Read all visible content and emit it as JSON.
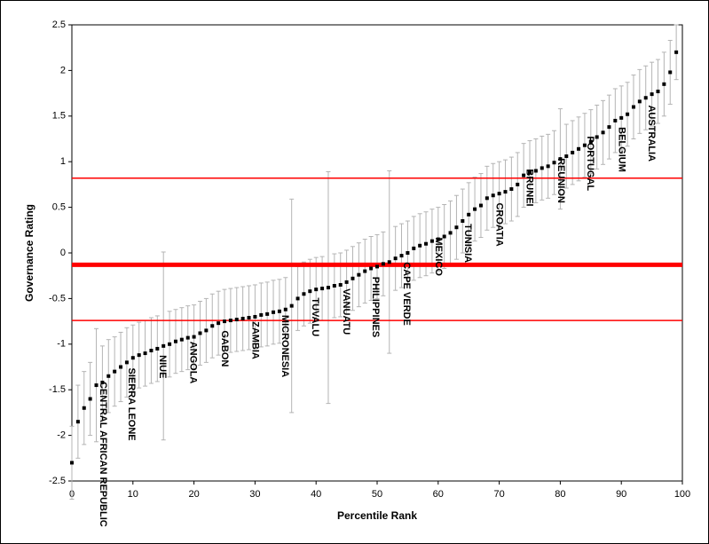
{
  "chart_data": {
    "type": "scatter",
    "x_label": "Percentile Rank",
    "y_label": "Governance Rating",
    "xlim": [
      0,
      100
    ],
    "xticks": [
      0,
      10,
      20,
      30,
      40,
      50,
      60,
      70,
      80,
      90,
      100
    ],
    "ylim": [
      -2.5,
      2.5
    ],
    "yticks": [
      -2.5,
      -2,
      -1.5,
      -1,
      -0.5,
      0,
      0.5,
      1,
      1.5,
      2,
      2.5
    ],
    "color": "#000000",
    "error_color": "#b4b4b4",
    "reference_color": "#ff0000",
    "reference_lines": [
      0.82,
      -0.13,
      -0.74
    ],
    "x": [
      0,
      1,
      2,
      3,
      4,
      5,
      6,
      7,
      8,
      9,
      10,
      11,
      12,
      13,
      14,
      15,
      16,
      17,
      18,
      19,
      20,
      21,
      22,
      23,
      24,
      25,
      26,
      27,
      28,
      29,
      30,
      31,
      32,
      33,
      34,
      35,
      36,
      37,
      38,
      39,
      40,
      41,
      42,
      43,
      44,
      45,
      46,
      47,
      48,
      49,
      50,
      51,
      52,
      53,
      54,
      55,
      56,
      57,
      58,
      59,
      60,
      61,
      62,
      63,
      64,
      65,
      66,
      67,
      68,
      69,
      70,
      71,
      72,
      73,
      74,
      75,
      76,
      77,
      78,
      79,
      80,
      81,
      82,
      83,
      84,
      85,
      86,
      87,
      88,
      89,
      90,
      91,
      92,
      93,
      94,
      95,
      96,
      97,
      98,
      99
    ],
    "values": [
      -2.3,
      -1.85,
      -1.7,
      -1.6,
      -1.45,
      -1.42,
      -1.35,
      -1.3,
      -1.25,
      -1.2,
      -1.15,
      -1.12,
      -1.1,
      -1.07,
      -1.05,
      -1.02,
      -1.0,
      -0.97,
      -0.95,
      -0.93,
      -0.92,
      -0.88,
      -0.85,
      -0.8,
      -0.77,
      -0.75,
      -0.74,
      -0.73,
      -0.72,
      -0.71,
      -0.7,
      -0.68,
      -0.67,
      -0.65,
      -0.64,
      -0.62,
      -0.58,
      -0.5,
      -0.45,
      -0.42,
      -0.4,
      -0.39,
      -0.38,
      -0.36,
      -0.35,
      -0.32,
      -0.28,
      -0.24,
      -0.2,
      -0.17,
      -0.15,
      -0.12,
      -0.1,
      -0.06,
      -0.03,
      0.0,
      0.05,
      0.08,
      0.1,
      0.13,
      0.15,
      0.18,
      0.22,
      0.28,
      0.35,
      0.42,
      0.48,
      0.52,
      0.6,
      0.63,
      0.65,
      0.67,
      0.7,
      0.75,
      0.85,
      0.88,
      0.9,
      0.93,
      0.95,
      0.99,
      1.03,
      1.06,
      1.1,
      1.14,
      1.18,
      1.22,
      1.27,
      1.32,
      1.38,
      1.45,
      1.48,
      1.52,
      1.6,
      1.66,
      1.7,
      1.74,
      1.77,
      1.85,
      1.98,
      2.2
    ],
    "errors": [
      0.4,
      0.4,
      0.4,
      0.4,
      0.62,
      0.4,
      0.4,
      0.38,
      0.38,
      0.38,
      0.36,
      0.36,
      0.36,
      0.36,
      0.36,
      1.03,
      0.36,
      0.35,
      0.35,
      0.35,
      0.35,
      0.35,
      0.35,
      0.35,
      0.35,
      0.35,
      0.35,
      0.35,
      0.35,
      0.35,
      0.35,
      0.35,
      0.35,
      0.35,
      0.35,
      0.35,
      1.17,
      0.35,
      0.35,
      0.35,
      0.35,
      0.35,
      1.27,
      0.35,
      0.35,
      0.35,
      0.35,
      0.35,
      0.35,
      0.35,
      0.35,
      0.35,
      1.0,
      0.35,
      0.35,
      0.35,
      0.35,
      0.35,
      0.35,
      0.35,
      0.35,
      0.35,
      0.35,
      0.35,
      0.35,
      0.35,
      0.35,
      0.35,
      0.35,
      0.35,
      0.35,
      0.35,
      0.35,
      0.35,
      0.35,
      0.35,
      0.35,
      0.35,
      0.35,
      0.35,
      0.55,
      0.35,
      0.35,
      0.35,
      0.35,
      0.35,
      0.35,
      0.35,
      0.35,
      0.35,
      0.35,
      0.35,
      0.35,
      0.35,
      0.35,
      0.35,
      0.35,
      0.35,
      0.35,
      0.3
    ],
    "annotations": [
      {
        "text": "CENTRAL AFRICAN REPUBLIC",
        "x": 5.1,
        "y": -1.41
      },
      {
        "text": "SIERRA LEONE",
        "x": 9.7,
        "y": -1.26
      },
      {
        "text": "NIUE",
        "x": 14.8,
        "y": -1.12
      },
      {
        "text": "ANGOLA",
        "x": 19.8,
        "y": -0.97
      },
      {
        "text": "GABON",
        "x": 25,
        "y": -0.85
      },
      {
        "text": "ZAMBIA",
        "x": 30,
        "y": -0.75
      },
      {
        "text": "MICRONESIA",
        "x": 34.9,
        "y": -0.68
      },
      {
        "text": "TUVALU",
        "x": 39.8,
        "y": -0.49
      },
      {
        "text": "VANUATU",
        "x": 44.9,
        "y": -0.39
      },
      {
        "text": "PHILIPPINES",
        "x": 49.7,
        "y": -0.26
      },
      {
        "text": "CAPE VERDE",
        "x": 54.8,
        "y": -0.1
      },
      {
        "text": "MEXICO",
        "x": 60,
        "y": 0.17
      },
      {
        "text": "TUNISIA",
        "x": 64.8,
        "y": 0.32
      },
      {
        "text": "CROATIA",
        "x": 70,
        "y": 0.55
      },
      {
        "text": "BRUNEI",
        "x": 74.9,
        "y": 0.92
      },
      {
        "text": "REUNION",
        "x": 80.1,
        "y": 1.04
      },
      {
        "text": "PORTUGAL",
        "x": 84.9,
        "y": 1.28
      },
      {
        "text": "BELGIUM",
        "x": 90,
        "y": 1.38
      },
      {
        "text": "AUSTRALIA",
        "x": 94.9,
        "y": 1.62
      }
    ]
  }
}
